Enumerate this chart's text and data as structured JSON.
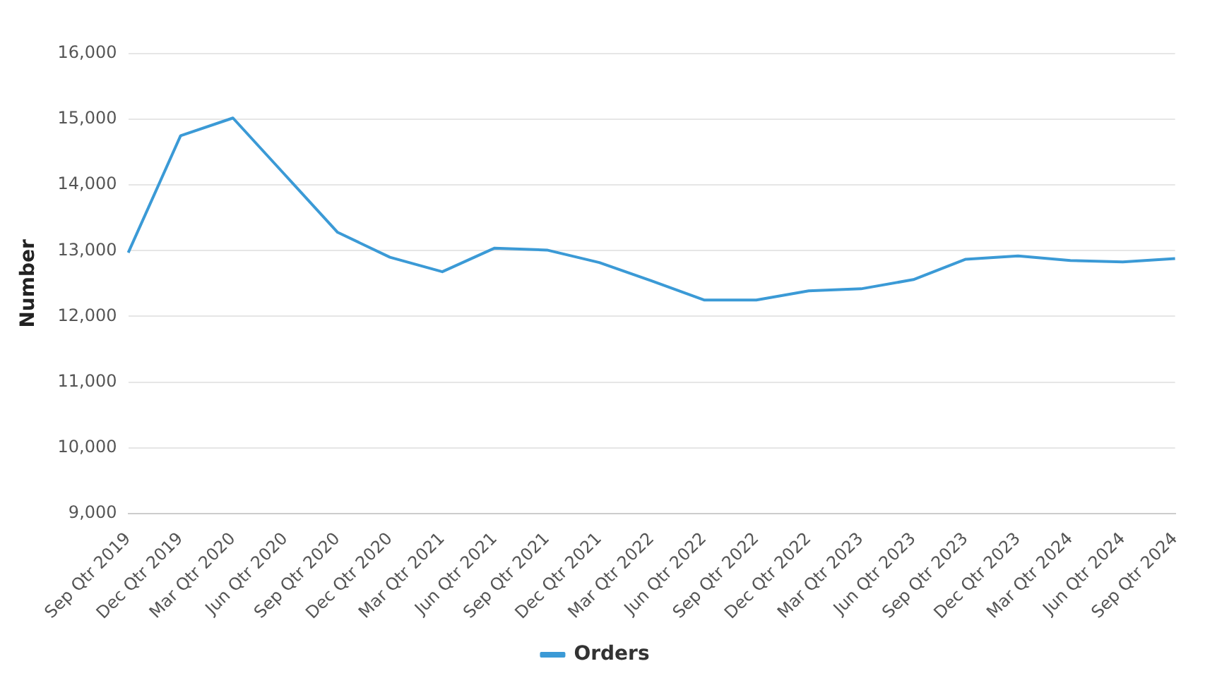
{
  "chart_data": {
    "type": "line",
    "ylabel": "Number",
    "categories": [
      "Sep Qtr 2019",
      "Dec Qtr 2019",
      "Mar Qtr 2020",
      "Jun Qtr 2020",
      "Sep Qtr 2020",
      "Dec Qtr 2020",
      "Mar Qtr 2021",
      "Jun Qtr 2021",
      "Sep Qtr 2021",
      "Dec Qtr 2021",
      "Mar Qtr 2022",
      "Jun Qtr 2022",
      "Sep Qtr 2022",
      "Dec Qtr 2022",
      "Mar Qtr 2023",
      "Jun Qtr 2023",
      "Sep Qtr 2023",
      "Dec Qtr 2023",
      "Mar Qtr 2024",
      "Jun Qtr 2024",
      "Sep Qtr 2024"
    ],
    "series": [
      {
        "name": "Orders",
        "color": "#3b9ad6",
        "values": [
          12970,
          14750,
          15020,
          14150,
          13280,
          12900,
          12680,
          13040,
          13010,
          12820,
          12540,
          12250,
          12250,
          12390,
          12420,
          12560,
          12870,
          12920,
          12850,
          12830,
          12880
        ]
      }
    ],
    "ylim": [
      9000,
      16000
    ],
    "yticks": [
      {
        "value": 9000,
        "label": "9,000"
      },
      {
        "value": 10000,
        "label": "10,000"
      },
      {
        "value": 11000,
        "label": "11,000"
      },
      {
        "value": 12000,
        "label": "12,000"
      },
      {
        "value": 13000,
        "label": "13,000"
      },
      {
        "value": 14000,
        "label": "14,000"
      },
      {
        "value": 15000,
        "label": "15,000"
      },
      {
        "value": 16000,
        "label": "16,000"
      }
    ],
    "grid": "y",
    "legend": "bottom",
    "marker": "none",
    "line_style": "solid"
  }
}
